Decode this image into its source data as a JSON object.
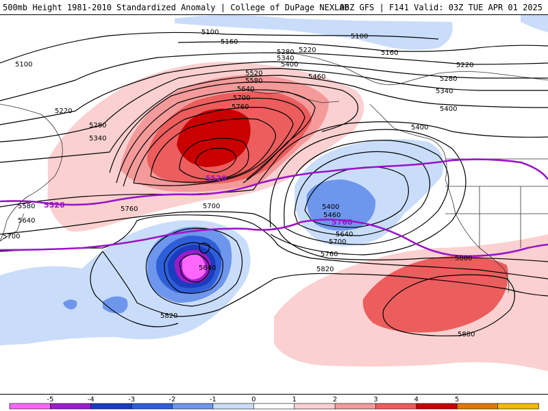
{
  "header": {
    "left_title": "500mb Height 1981-2010 Standardized Anomaly | College of DuPage NEXLAB",
    "right_title": "06Z GFS | F141 Valid: 03Z TUE APR 01 2025"
  },
  "contour_labels": {
    "c5100a": "5100",
    "c5100b": "5100",
    "c5100c": "5100",
    "c5160a": "5160",
    "c5160b": "5160",
    "c5220a": "5220",
    "c5220b": "5220",
    "c5220c": "5220",
    "c5280a": "5280",
    "c5280b": "5280",
    "c5280c": "5280",
    "c5340a": "5340",
    "c5340b": "5340",
    "c5340c": "5340",
    "c5400a": "5400",
    "c5400b": "5400",
    "c5400c": "5400",
    "c5400d": "5400",
    "c5460a": "5460",
    "c5460b": "5460",
    "c5520a": "5520",
    "c5520h1": "5520",
    "c5520h2": "5520",
    "c5580a": "5580",
    "c5580b": "5580",
    "c5640a": "5640",
    "c5640b": "5640",
    "c5640c": "5640",
    "c5640d": "5640",
    "c5700a": "5700",
    "c5700b": "5700",
    "c5700c": "5700",
    "c5700d": "5700",
    "c5760a": "5760",
    "c5760b": "5760",
    "c5760h": "5760",
    "c5820a": "5820",
    "c5820b": "5820",
    "c5880a": "5880",
    "c5880b": "5880"
  },
  "colorbar": {
    "ticks": [
      "-5",
      "-4",
      "-3",
      "-2",
      "-1",
      "0",
      "1",
      "2",
      "3",
      "4",
      "5"
    ],
    "colors": [
      "#ff66ff",
      "#9b1cc8",
      "#1a3cbf",
      "#2f5fd8",
      "#6e96ec",
      "#c9ddfa",
      "#ffffff",
      "#fbd0d0",
      "#f49a9a",
      "#ec5d5d",
      "#c80000",
      "#e07800",
      "#f5b800"
    ]
  },
  "colors": {
    "highlight_contour": "#9a14c8",
    "contour": "#000000",
    "coast": "#333333"
  }
}
